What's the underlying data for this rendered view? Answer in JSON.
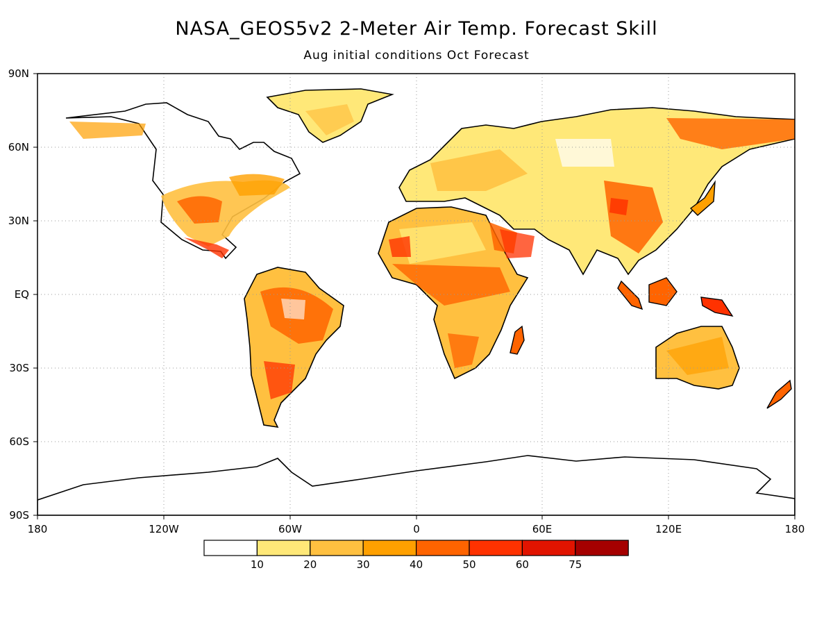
{
  "map": {
    "title": "NASA_GEOS5v2 2-Meter Air Temp. Forecast Skill",
    "subtitle": "Aug initial conditions  Oct Forecast",
    "lat_labels": [
      "90N",
      "60N",
      "30N",
      "EQ",
      "30S",
      "60S",
      "90S"
    ],
    "lon_labels": [
      "180",
      "120W",
      "60W",
      "0",
      "60E",
      "120E",
      "180"
    ],
    "grid": true,
    "projection": "equirectangular",
    "extent": {
      "lon": [
        -180,
        180
      ],
      "lat": [
        -90,
        90
      ]
    }
  },
  "colorbar": {
    "colors": [
      "#ffffff",
      "#ffe878",
      "#ffc040",
      "#ffa000",
      "#ff6400",
      "#ff3200",
      "#e11400",
      "#a50000"
    ],
    "tick_labels": [
      "10",
      "20",
      "30",
      "40",
      "50",
      "60",
      "75"
    ]
  }
}
